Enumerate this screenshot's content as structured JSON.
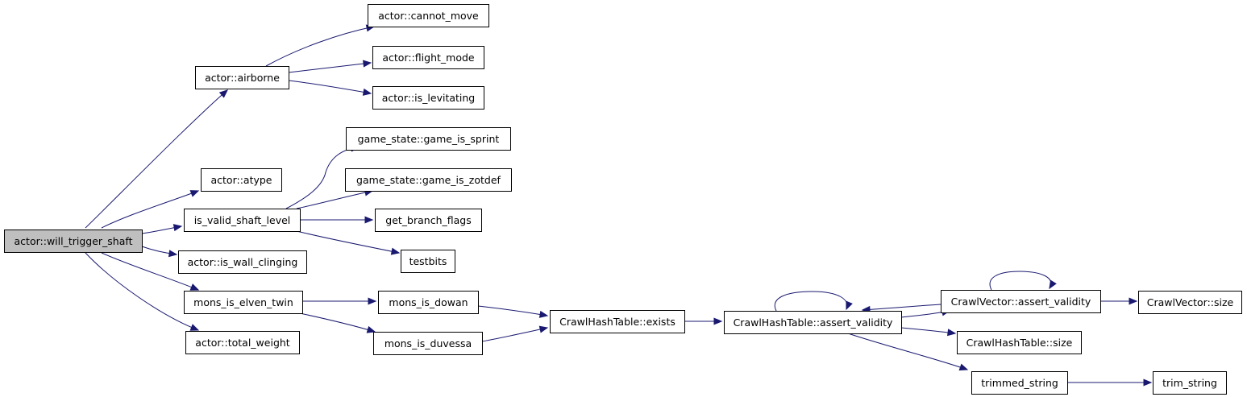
{
  "nodes": [
    {
      "id": "will_trigger_shaft",
      "label": "actor::will_trigger_shaft",
      "root": true
    },
    {
      "id": "airborne",
      "label": "actor::airborne"
    },
    {
      "id": "cannot_move",
      "label": "actor::cannot_move"
    },
    {
      "id": "flight_mode",
      "label": "actor::flight_mode"
    },
    {
      "id": "is_levitating",
      "label": "actor::is_levitating"
    },
    {
      "id": "atype",
      "label": "actor::atype"
    },
    {
      "id": "is_valid_shaft_level",
      "label": "is_valid_shaft_level"
    },
    {
      "id": "game_is_sprint",
      "label": "game_state::game_is_sprint"
    },
    {
      "id": "game_is_zotdef",
      "label": "game_state::game_is_zotdef"
    },
    {
      "id": "get_branch_flags",
      "label": "get_branch_flags"
    },
    {
      "id": "testbits",
      "label": "testbits"
    },
    {
      "id": "is_wall_clinging",
      "label": "actor::is_wall_clinging"
    },
    {
      "id": "mons_is_elven_twin",
      "label": "mons_is_elven_twin"
    },
    {
      "id": "mons_is_dowan",
      "label": "mons_is_dowan"
    },
    {
      "id": "mons_is_duvessa",
      "label": "mons_is_duvessa"
    },
    {
      "id": "total_weight",
      "label": "actor::total_weight"
    },
    {
      "id": "cht_exists",
      "label": "CrawlHashTable::exists"
    },
    {
      "id": "cht_assert_validity",
      "label": "CrawlHashTable::assert_validity"
    },
    {
      "id": "cv_assert_validity",
      "label": "CrawlVector::assert_validity"
    },
    {
      "id": "cv_size",
      "label": "CrawlVector::size"
    },
    {
      "id": "cht_size",
      "label": "CrawlHashTable::size"
    },
    {
      "id": "trimmed_string",
      "label": "trimmed_string"
    },
    {
      "id": "trim_string",
      "label": "trim_string"
    }
  ],
  "edges": [
    {
      "from": "will_trigger_shaft",
      "to": "airborne"
    },
    {
      "from": "will_trigger_shaft",
      "to": "atype"
    },
    {
      "from": "will_trigger_shaft",
      "to": "is_valid_shaft_level"
    },
    {
      "from": "will_trigger_shaft",
      "to": "is_wall_clinging"
    },
    {
      "from": "will_trigger_shaft",
      "to": "mons_is_elven_twin"
    },
    {
      "from": "will_trigger_shaft",
      "to": "total_weight"
    },
    {
      "from": "airborne",
      "to": "cannot_move"
    },
    {
      "from": "airborne",
      "to": "flight_mode"
    },
    {
      "from": "airborne",
      "to": "is_levitating"
    },
    {
      "from": "is_valid_shaft_level",
      "to": "game_is_sprint"
    },
    {
      "from": "is_valid_shaft_level",
      "to": "game_is_zotdef"
    },
    {
      "from": "is_valid_shaft_level",
      "to": "get_branch_flags"
    },
    {
      "from": "is_valid_shaft_level",
      "to": "testbits"
    },
    {
      "from": "mons_is_elven_twin",
      "to": "mons_is_dowan"
    },
    {
      "from": "mons_is_elven_twin",
      "to": "mons_is_duvessa"
    },
    {
      "from": "mons_is_dowan",
      "to": "cht_exists"
    },
    {
      "from": "mons_is_duvessa",
      "to": "cht_exists"
    },
    {
      "from": "cht_exists",
      "to": "cht_assert_validity"
    },
    {
      "from": "cht_assert_validity",
      "to": "cht_assert_validity"
    },
    {
      "from": "cht_assert_validity",
      "to": "cv_assert_validity"
    },
    {
      "from": "cht_assert_validity",
      "to": "cht_size"
    },
    {
      "from": "cht_assert_validity",
      "to": "trimmed_string"
    },
    {
      "from": "cv_assert_validity",
      "to": "cv_assert_validity"
    },
    {
      "from": "cv_assert_validity",
      "to": "cht_assert_validity"
    },
    {
      "from": "cv_assert_validity",
      "to": "cv_size"
    },
    {
      "from": "trimmed_string",
      "to": "trim_string"
    }
  ]
}
